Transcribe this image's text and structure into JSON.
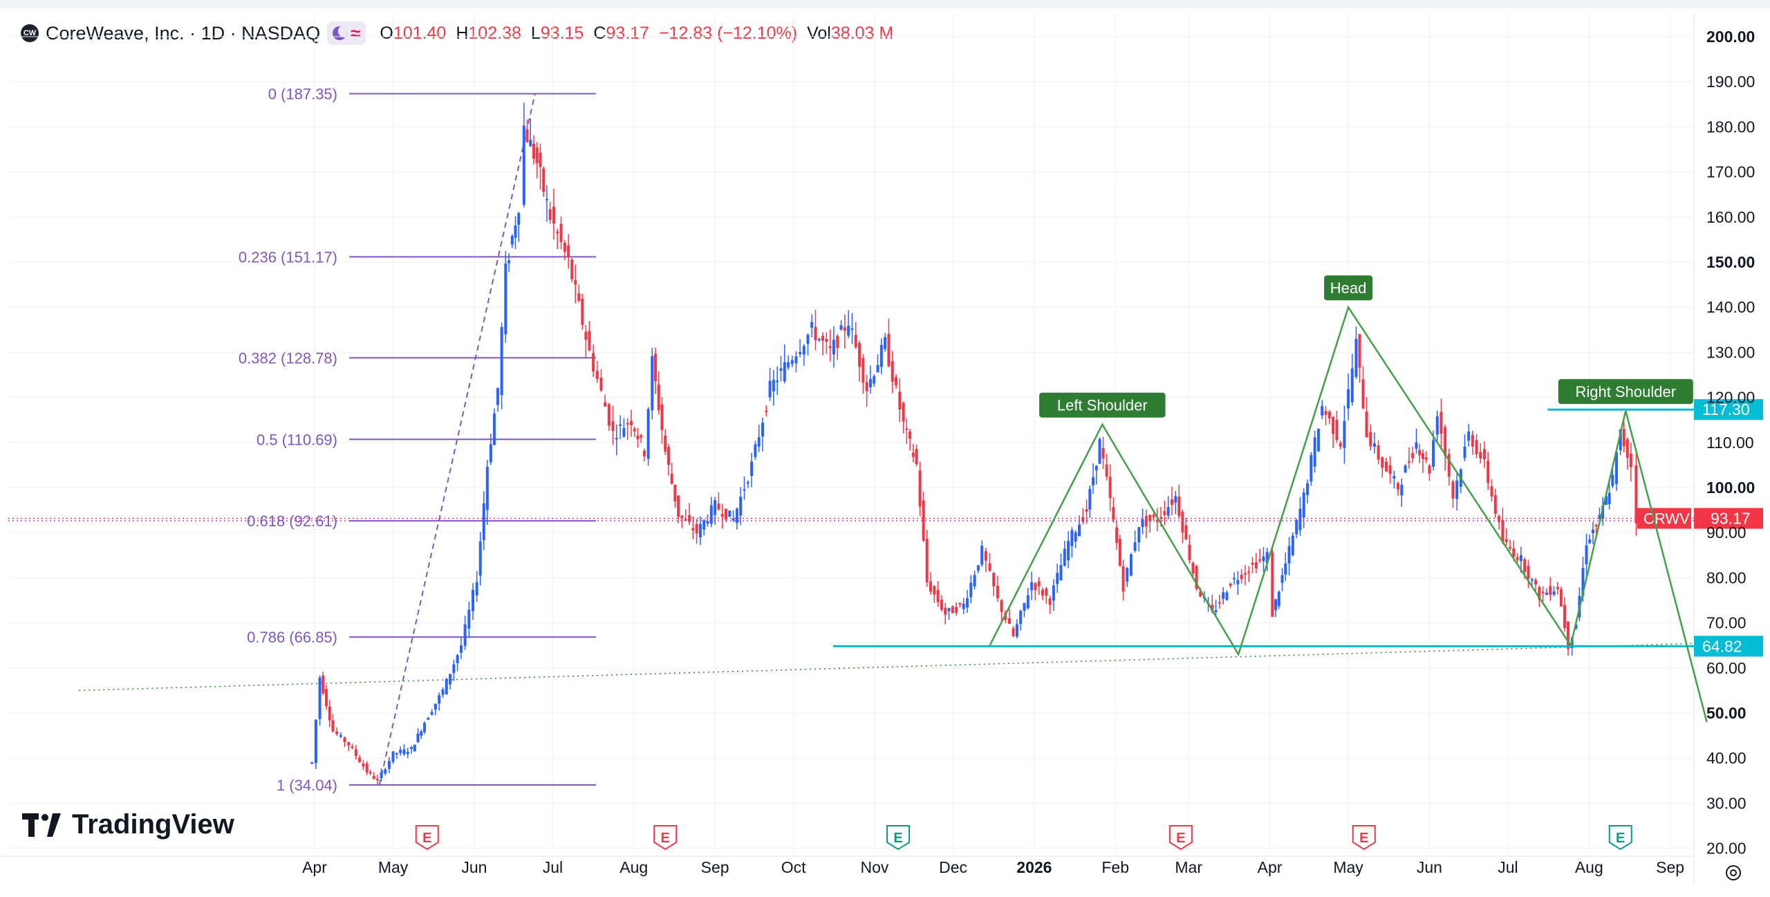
{
  "legend": {
    "symbol_title": "CoreWeave, Inc. · 1D · NASDAQ",
    "logo_text": "CW",
    "wave_glyph": "≈",
    "open_label": "O",
    "open": "101.40",
    "high_label": "H",
    "high": "102.38",
    "low_label": "L",
    "low": "93.15",
    "close_label": "C",
    "close": "93.17",
    "change": "−12.83 (−12.10%)",
    "vol_label": "Vol",
    "vol": "38.03 M"
  },
  "brand": {
    "name": "TradingView"
  },
  "colors": {
    "up": "#2962ff",
    "down": "#f23645",
    "fib": "#7e57c2",
    "pattern": "#2e7d32",
    "level": "#00bcd4",
    "grid": "#eef0f3"
  },
  "chart_data": {
    "type": "candlestick",
    "symbol": "CRWV",
    "y_axis": {
      "ticks": [
        "20.00",
        "30.00",
        "40.00",
        "50.00",
        "60.00",
        "70.00",
        "80.00",
        "90.00",
        "100.00",
        "110.00",
        "120.00",
        "130.00",
        "140.00",
        "150.00",
        "160.00",
        "170.00",
        "180.00",
        "190.00",
        "200.00"
      ],
      "bold_ticks": [
        "50.00",
        "100.00",
        "150.00",
        "200.00"
      ],
      "range": [
        20,
        200
      ]
    },
    "x_axis": {
      "ticks": [
        {
          "label": "Apr",
          "date": "2025-04-01",
          "bold": false
        },
        {
          "label": "May",
          "date": "2025-05-01",
          "bold": false
        },
        {
          "label": "Jun",
          "date": "2025-06-01",
          "bold": false
        },
        {
          "label": "Jul",
          "date": "2025-07-01",
          "bold": false
        },
        {
          "label": "Aug",
          "date": "2025-08-01",
          "bold": false
        },
        {
          "label": "Sep",
          "date": "2025-09-01",
          "bold": false
        },
        {
          "label": "Oct",
          "date": "2025-10-01",
          "bold": false
        },
        {
          "label": "Nov",
          "date": "2025-11-01",
          "bold": false
        },
        {
          "label": "Dec",
          "date": "2025-12-01",
          "bold": false
        },
        {
          "label": "2026",
          "date": "2026-01-01",
          "bold": true
        },
        {
          "label": "Feb",
          "date": "2026-02-01",
          "bold": false
        },
        {
          "label": "Mar",
          "date": "2026-03-01",
          "bold": false
        },
        {
          "label": "Apr",
          "date": "2026-04-01",
          "bold": false
        },
        {
          "label": "May",
          "date": "2026-05-01",
          "bold": false
        },
        {
          "label": "Jun",
          "date": "2026-06-01",
          "bold": false
        },
        {
          "label": "Jul",
          "date": "2026-07-01",
          "bold": false
        },
        {
          "label": "Aug",
          "date": "2026-08-01",
          "bold": false
        },
        {
          "label": "Sep",
          "date": "2026-09-01",
          "bold": false
        }
      ]
    },
    "price_path": [
      [
        "2025-03-31",
        39
      ],
      [
        "2025-04-03",
        58
      ],
      [
        "2025-04-08",
        46
      ],
      [
        "2025-04-14",
        43
      ],
      [
        "2025-04-21",
        37
      ],
      [
        "2025-04-25",
        35
      ],
      [
        "2025-05-01",
        41
      ],
      [
        "2025-05-08",
        42
      ],
      [
        "2025-05-13",
        48
      ],
      [
        "2025-05-20",
        55
      ],
      [
        "2025-05-27",
        65
      ],
      [
        "2025-06-02",
        80
      ],
      [
        "2025-06-06",
        105
      ],
      [
        "2025-06-10",
        122
      ],
      [
        "2025-06-13",
        148
      ],
      [
        "2025-06-18",
        163
      ],
      [
        "2025-06-20",
        180
      ],
      [
        "2025-06-25",
        172
      ],
      [
        "2025-06-30",
        160
      ],
      [
        "2025-07-07",
        150
      ],
      [
        "2025-07-15",
        130
      ],
      [
        "2025-07-24",
        112
      ],
      [
        "2025-07-31",
        115
      ],
      [
        "2025-08-05",
        108
      ],
      [
        "2025-08-08",
        128
      ],
      [
        "2025-08-13",
        108
      ],
      [
        "2025-08-18",
        94
      ],
      [
        "2025-08-25",
        90
      ],
      [
        "2025-09-01",
        96
      ],
      [
        "2025-09-08",
        93
      ],
      [
        "2025-09-15",
        105
      ],
      [
        "2025-09-22",
        122
      ],
      [
        "2025-09-29",
        128
      ],
      [
        "2025-10-08",
        135
      ],
      [
        "2025-10-15",
        130
      ],
      [
        "2025-10-22",
        137
      ],
      [
        "2025-10-29",
        122
      ],
      [
        "2025-11-05",
        132
      ],
      [
        "2025-11-12",
        114
      ],
      [
        "2025-11-17",
        105
      ],
      [
        "2025-11-21",
        79
      ],
      [
        "2025-11-28",
        72
      ],
      [
        "2025-12-05",
        74
      ],
      [
        "2025-12-12",
        86
      ],
      [
        "2025-12-18",
        75
      ],
      [
        "2025-12-24",
        67
      ],
      [
        "2025-12-31",
        79
      ],
      [
        "2026-01-07",
        75
      ],
      [
        "2026-01-14",
        88
      ],
      [
        "2026-01-21",
        95
      ],
      [
        "2026-01-26",
        110
      ],
      [
        "2026-01-30",
        97
      ],
      [
        "2026-02-04",
        78
      ],
      [
        "2026-02-10",
        92
      ],
      [
        "2026-02-17",
        93
      ],
      [
        "2026-02-24",
        98
      ],
      [
        "2026-03-04",
        78
      ],
      [
        "2026-03-10",
        72
      ],
      [
        "2026-03-17",
        79
      ],
      [
        "2026-03-24",
        82
      ],
      [
        "2026-03-31",
        85
      ],
      [
        "2026-04-02",
        72
      ],
      [
        "2026-04-07",
        83
      ],
      [
        "2026-04-14",
        98
      ],
      [
        "2026-04-21",
        118
      ],
      [
        "2026-04-28",
        110
      ],
      [
        "2026-05-04",
        132
      ],
      [
        "2026-05-08",
        112
      ],
      [
        "2026-05-14",
        105
      ],
      [
        "2026-05-20",
        100
      ],
      [
        "2026-05-27",
        110
      ],
      [
        "2026-06-01",
        104
      ],
      [
        "2026-06-04",
        117
      ],
      [
        "2026-06-10",
        98
      ],
      [
        "2026-06-16",
        112
      ],
      [
        "2026-06-22",
        105
      ],
      [
        "2026-06-29",
        88
      ],
      [
        "2026-07-06",
        84
      ],
      [
        "2026-07-13",
        76
      ],
      [
        "2026-07-20",
        78
      ],
      [
        "2026-07-24",
        65
      ],
      [
        "2026-07-27",
        70
      ],
      [
        "2026-07-31",
        88
      ],
      [
        "2026-08-05",
        93
      ],
      [
        "2026-08-10",
        102
      ],
      [
        "2026-08-13",
        112
      ],
      [
        "2026-08-17",
        105
      ],
      [
        "2026-08-19",
        93.17
      ]
    ],
    "fib_retracement": {
      "start_date": "2025-04-21",
      "end_date": "2025-06-20",
      "label_end_date": "2025-07-17",
      "levels": [
        {
          "label": "0 (187.35)",
          "price": 187.35
        },
        {
          "label": "0.236 (151.17)",
          "price": 151.17
        },
        {
          "label": "0.382 (128.78)",
          "price": 128.78
        },
        {
          "label": "0.5 (110.69)",
          "price": 110.69
        },
        {
          "label": "0.618 (92.61)",
          "price": 92.61
        },
        {
          "label": "0.786 (66.85)",
          "price": 66.85
        },
        {
          "label": "1 (34.04)",
          "price": 34.04
        }
      ]
    },
    "head_and_shoulders": {
      "path": [
        [
          "2025-12-15",
          65
        ],
        [
          "2026-01-27",
          114
        ],
        [
          "2026-03-20",
          63
        ],
        [
          "2026-05-01",
          140
        ],
        [
          "2026-07-25",
          65
        ],
        [
          "2026-08-15",
          117
        ],
        [
          "2026-09-15",
          48
        ]
      ],
      "labels": [
        {
          "text": "Left Shoulder",
          "date": "2026-01-27",
          "price": 114
        },
        {
          "text": "Head",
          "date": "2026-05-01",
          "price": 140
        },
        {
          "text": "Right Shoulder",
          "date": "2026-08-15",
          "price": 117
        }
      ]
    },
    "horizontal_lines": [
      {
        "price": 64.82,
        "label": "64.82",
        "from_date": "2025-11-01"
      },
      {
        "price": 117.3,
        "label": "117.30",
        "from_date": "2026-08-01"
      }
    ],
    "last_price": {
      "symbol": "CRWV",
      "price": 93.17,
      "label": "93.17"
    },
    "dotted_levels": [
      93.17,
      92.61
    ],
    "trendline": {
      "from": [
        "2025-01-01",
        55
      ],
      "to": [
        "2026-09-15",
        65.5
      ]
    },
    "earnings_dates": [
      "2025-05-14",
      "2025-08-13",
      "2025-11-10",
      "2026-02-26",
      "2026-05-07",
      "2026-08-13"
    ]
  }
}
